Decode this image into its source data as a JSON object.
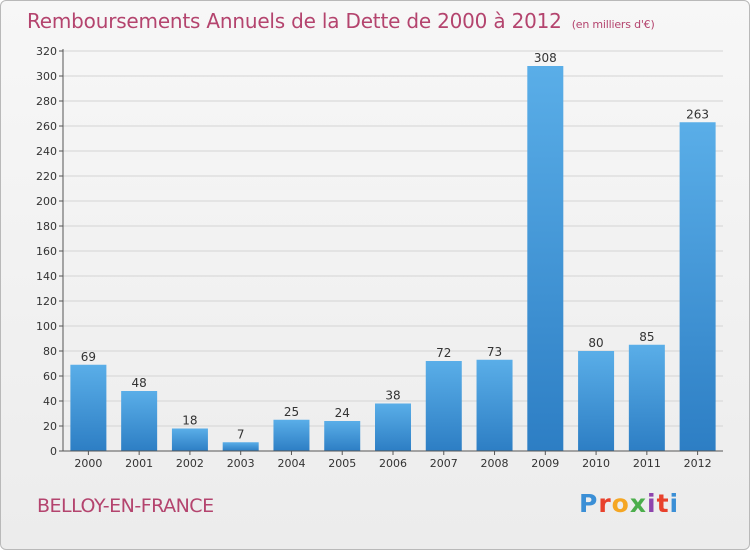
{
  "title": "Remboursements Annuels de la Dette de 2000 à 2012",
  "unit_note": "(en milliers d'€)",
  "commune": "BELLOY-EN-FRANCE",
  "logo": {
    "text": "Proxiti",
    "colors": [
      "#3b8fd6",
      "#e8412c",
      "#f5a623",
      "#4cae4c",
      "#8e44ad",
      "#e8412c",
      "#3b8fd6"
    ]
  },
  "colors": {
    "bar_top": "#5aaee8",
    "bar_bottom": "#2d7ec4",
    "title": "#b4446e",
    "grid": "#d4d4d4"
  },
  "chart_data": {
    "type": "bar",
    "categories": [
      "2000",
      "2001",
      "2002",
      "2003",
      "2004",
      "2005",
      "2006",
      "2007",
      "2008",
      "2009",
      "2010",
      "2011",
      "2012"
    ],
    "values": [
      69,
      48,
      18,
      7,
      25,
      24,
      38,
      72,
      73,
      308,
      80,
      85,
      263
    ],
    "title": "Remboursements Annuels de la Dette de 2000 à 2012",
    "xlabel": "",
    "ylabel": "",
    "ylim": [
      0,
      320
    ],
    "yticks": [
      0,
      20,
      40,
      60,
      80,
      100,
      120,
      140,
      160,
      180,
      200,
      220,
      240,
      260,
      280,
      300,
      320
    ],
    "grid": true,
    "legend": "none"
  }
}
